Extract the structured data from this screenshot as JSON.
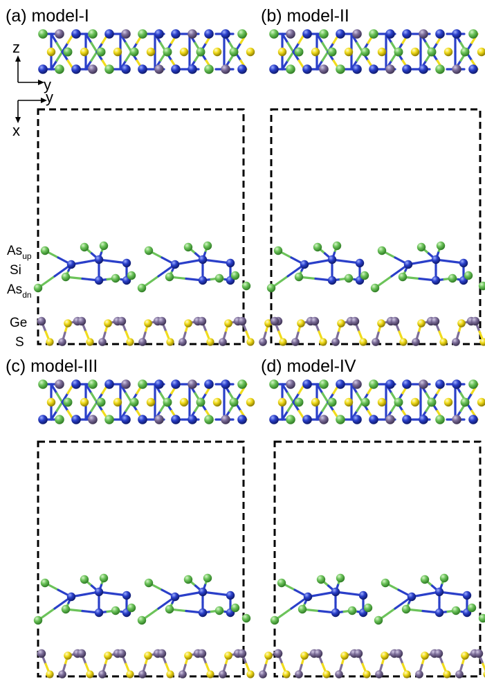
{
  "figure": {
    "panels": [
      {
        "id": "a",
        "label": "(a) model-I",
        "stack": 0
      },
      {
        "id": "b",
        "label": "(b) model-II",
        "stack": 1
      },
      {
        "id": "c",
        "label": "(c) model-III",
        "stack": 2
      },
      {
        "id": "d",
        "label": "(d) model-IV",
        "stack": 3
      }
    ],
    "axes": {
      "side_view": {
        "vertical": "z",
        "horizontal": "y"
      },
      "top_view": {
        "horizontal": "y",
        "vertical": "x"
      }
    },
    "atom_labels": [
      {
        "base": "As",
        "sub": "up"
      },
      {
        "base": "Si",
        "sub": ""
      },
      {
        "base": "As",
        "sub": "dn"
      },
      {
        "base": "Ge",
        "sub": ""
      },
      {
        "base": "S",
        "sub": ""
      }
    ],
    "colors": {
      "As": "#6cc35a",
      "Si": "#2a3fc9",
      "Ge": "#7d6e9a",
      "S": "#f1dc1c",
      "cell_border": "#000000"
    }
  }
}
